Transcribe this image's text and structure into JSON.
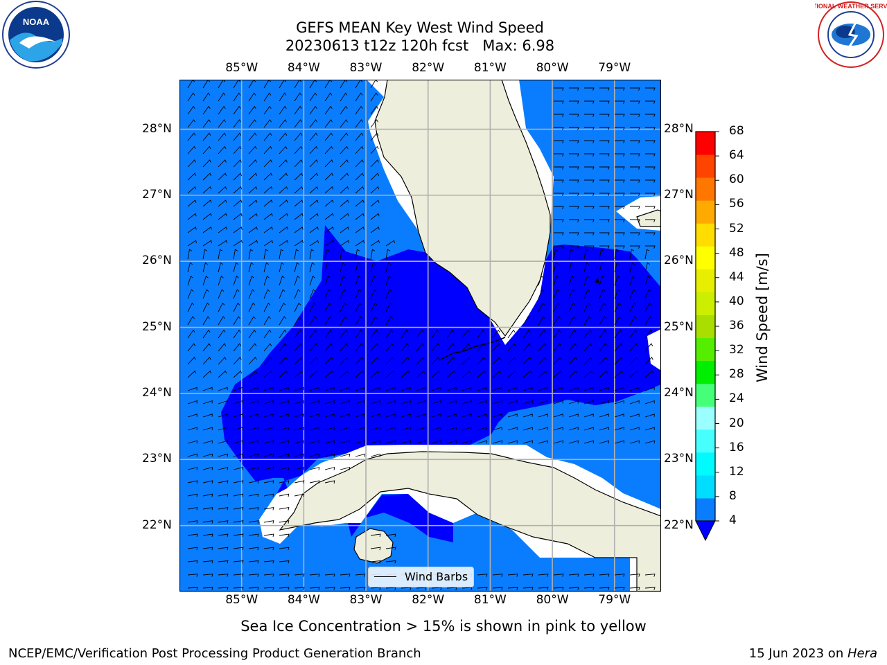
{
  "title": {
    "line1": "GEFS MEAN Key West Wind Speed",
    "line2": "20230613 t12z 120h fcst   Max: 6.98"
  },
  "map": {
    "lon_ticks": [
      "85°W",
      "84°W",
      "83°W",
      "82°W",
      "81°W",
      "80°W",
      "79°W"
    ],
    "lat_ticks": [
      "28°N",
      "27°N",
      "26°N",
      "25°N",
      "24°N",
      "23°N",
      "22°N"
    ],
    "extent": {
      "lon_min": -86.0,
      "lon_max": -78.25,
      "lat_min": 21.0,
      "lat_max": 28.75
    },
    "grid": true,
    "colors": {
      "ocean_light": "#0a7dff",
      "ocean_dark": "#0000ff",
      "land": "#eeeedc",
      "coast_mask": "#ffffff"
    },
    "legend": {
      "label": "Wind Barbs",
      "placement": "bottom-center"
    }
  },
  "colorbar": {
    "label": "Wind Speed [m/s]",
    "ticks": [
      "4",
      "8",
      "12",
      "16",
      "20",
      "24",
      "28",
      "32",
      "36",
      "40",
      "44",
      "48",
      "52",
      "56",
      "60",
      "64",
      "68"
    ],
    "colors": [
      "#0a7dff",
      "#00ddff",
      "#00fbff",
      "#48ffff",
      "#9bffff",
      "#44ff77",
      "#00ee00",
      "#55ee00",
      "#aadd00",
      "#ccee00",
      "#e8ee00",
      "#ffff00",
      "#ffdd00",
      "#ffaa00",
      "#ff7700",
      "#ff4400",
      "#ff0000"
    ],
    "extend_min_color": "#0000ff",
    "range": [
      4,
      68
    ]
  },
  "logos": {
    "left": {
      "text": "NOAA"
    },
    "right": {
      "text": "NATIONAL WEATHER SERVICE"
    }
  },
  "note": "Sea Ice Concentration > 15% is shown in pink to yellow",
  "footer": {
    "left": "NCEP/EMC/Verification Post Processing Product Generation Branch",
    "right_prefix": "15 Jun 2023 on ",
    "right_machine": "Hera"
  }
}
